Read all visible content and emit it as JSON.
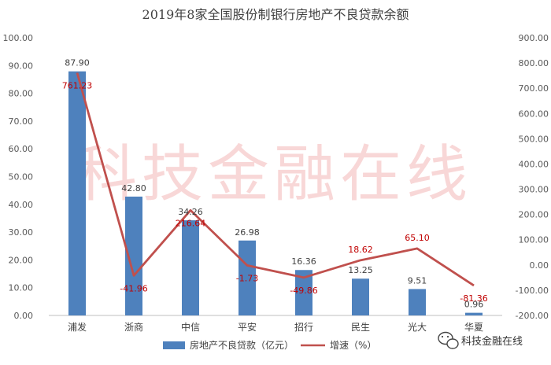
{
  "chart_data": {
    "type": "bar",
    "title": "2019年8家全国股份制银行房地产不良贷款余额",
    "categories": [
      "浦发",
      "浙商",
      "中信",
      "平安",
      "招行",
      "民生",
      "光大",
      "华夏"
    ],
    "series": [
      {
        "name": "房地产不良贷款（亿元）",
        "type": "bar",
        "axis": "left",
        "values": [
          87.9,
          42.8,
          34.26,
          26.98,
          16.36,
          13.25,
          9.51,
          0.96
        ],
        "labels": [
          "87.90",
          "42.80",
          "34.26",
          "26.98",
          "16.36",
          "13.25",
          "9.51",
          "0.96"
        ]
      },
      {
        "name": "增速（%）",
        "type": "line",
        "axis": "right",
        "values": [
          761.23,
          -41.96,
          216.64,
          -1.73,
          -49.86,
          18.62,
          65.1,
          -81.36
        ],
        "labels": [
          "761.23",
          "-41.96",
          "216.64",
          "-1.73",
          "-49.86",
          "18.62",
          "65.10",
          "-81.36"
        ]
      }
    ],
    "left_axis": {
      "ylim": [
        0,
        100
      ],
      "ticks": [
        "0.00",
        "10.00",
        "20.00",
        "30.00",
        "40.00",
        "50.00",
        "60.00",
        "70.00",
        "80.00",
        "90.00",
        "100.00"
      ]
    },
    "right_axis": {
      "ylim": [
        -200,
        900
      ],
      "ticks": [
        "-200.00",
        "-100.00",
        "0.00",
        "100.00",
        "200.00",
        "300.00",
        "400.00",
        "500.00",
        "600.00",
        "700.00",
        "800.00",
        "900.00"
      ]
    },
    "legend_position": "bottom",
    "grid": false
  },
  "watermark": "科技金融在线",
  "brand": {
    "name": "科技金融在线",
    "icon": "wechat-icon"
  },
  "colors": {
    "bar": "#4e81bd",
    "line": "#c0504d",
    "line_label": "#c00000",
    "watermark": "#f4b8b8"
  }
}
